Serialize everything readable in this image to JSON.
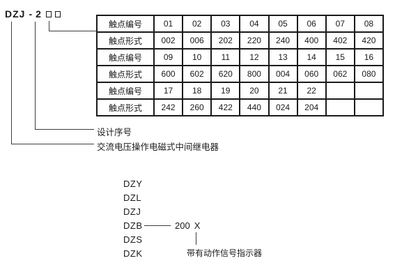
{
  "model_code": {
    "letters": "DZJ",
    "separator": "-",
    "series_digit": "2"
  },
  "contact_table": {
    "rows": [
      {
        "label": "触点编号",
        "cells": [
          "01",
          "02",
          "03",
          "04",
          "05",
          "06",
          "07",
          "08"
        ]
      },
      {
        "label": "触点形式",
        "cells": [
          "002",
          "006",
          "202",
          "220",
          "240",
          "400",
          "402",
          "420"
        ]
      },
      {
        "label": "触点编号",
        "cells": [
          "09",
          "10",
          "11",
          "12",
          "13",
          "14",
          "15",
          "16"
        ]
      },
      {
        "label": "触点形式",
        "cells": [
          "600",
          "602",
          "620",
          "800",
          "004",
          "060",
          "062",
          "080"
        ]
      },
      {
        "label": "触点编号",
        "cells": [
          "17",
          "18",
          "19",
          "20",
          "21",
          "22",
          "",
          ""
        ]
      },
      {
        "label": "触点形式",
        "cells": [
          "242",
          "260",
          "422",
          "440",
          "024",
          "204",
          "",
          ""
        ]
      }
    ]
  },
  "callouts": {
    "design_serial_label": "设计序号",
    "relay_type_label": "交流电压操作电磁式中间继电器"
  },
  "series_list": {
    "items": [
      "DZY",
      "DZL",
      "DZJ",
      "DZB",
      "DZS",
      "DZK"
    ],
    "dzb_value": "200",
    "dzb_variant": "X",
    "variant_note": "带有动作信号指示器"
  },
  "colors": {
    "text": "#1a1a1a",
    "table_border": "#1a1a1a",
    "connector_line": "#3d3d3d",
    "background": "#ffffff"
  }
}
